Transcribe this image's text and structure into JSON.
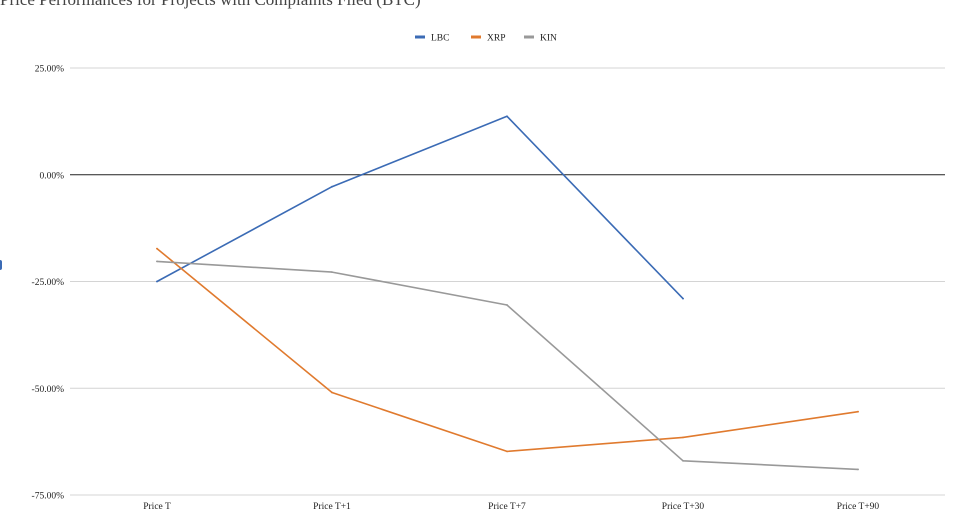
{
  "chart_data": {
    "type": "line",
    "title": "Price Performances for Projects with Complaints Filed (BTC)",
    "categories": [
      "Price T",
      "Price T+1",
      "Price T+7",
      "Price T+30",
      "Price T+90"
    ],
    "series": [
      {
        "name": "LBC",
        "color": "#3b6bb5",
        "values": [
          -25.0,
          -2.8,
          13.7,
          -29.0,
          null
        ]
      },
      {
        "name": "XRP",
        "color": "#e07a2e",
        "values": [
          -17.3,
          -51.0,
          -64.8,
          -61.5,
          -55.5
        ]
      },
      {
        "name": "KIN",
        "color": "#999999",
        "values": [
          -20.3,
          -22.8,
          -30.5,
          -67.0,
          -69.0
        ]
      }
    ],
    "yticks": [
      "25.00%",
      "0.00%",
      "-25.00%",
      "-50.00%",
      "-75.00%"
    ],
    "ylim": [
      -75,
      25
    ],
    "grid": true,
    "legend_position": "top-center",
    "xlabel": "",
    "ylabel": ""
  }
}
